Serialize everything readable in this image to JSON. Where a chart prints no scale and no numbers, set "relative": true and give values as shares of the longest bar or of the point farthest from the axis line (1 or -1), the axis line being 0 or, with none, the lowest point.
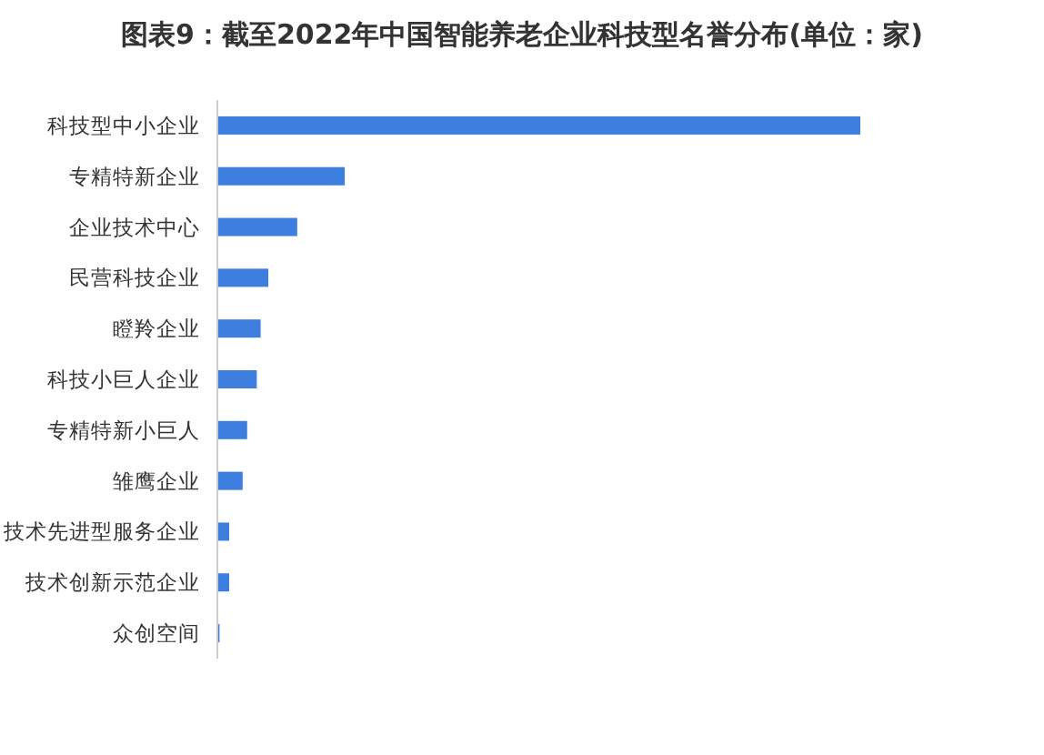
{
  "chart_data": {
    "type": "bar",
    "orientation": "horizontal",
    "relative": true,
    "title": "图表9：截至2022年中国智能养老企业科技型名誉分布(单位：家)",
    "categories": [
      "科技型中小企业",
      "专精特新企业",
      "企业技术中心",
      "民营科技企业",
      "瞪羚企业",
      "科技小巨人企业",
      "专精特新小巨人",
      "雏鹰企业",
      "技术先进型服务企业",
      "技术创新示范企业",
      "众创空间"
    ],
    "values": [
      1,
      0.197,
      0.123,
      0.078,
      0.066,
      0.06,
      0.045,
      0.038,
      0.017,
      0.017,
      0.002
    ],
    "color": "#3d7ede"
  }
}
